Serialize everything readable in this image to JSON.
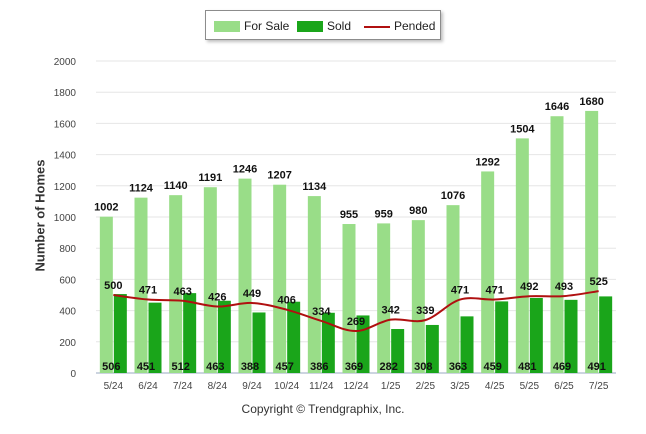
{
  "chart_data": {
    "type": "bar",
    "title": "",
    "xlabel": "",
    "ylabel": "Number of Homes",
    "ylim": [
      0,
      2000
    ],
    "yticks": [
      0,
      200,
      400,
      600,
      800,
      1000,
      1200,
      1400,
      1600,
      1800,
      2000
    ],
    "grid": true,
    "legend_position": "top-center",
    "categories": [
      "5/24",
      "6/24",
      "7/24",
      "8/24",
      "9/24",
      "10/24",
      "11/24",
      "12/24",
      "1/25",
      "2/25",
      "3/25",
      "4/25",
      "5/25",
      "6/25",
      "7/25"
    ],
    "series": [
      {
        "name": "For Sale",
        "type": "bar",
        "color": "#99dd88",
        "values": [
          1002,
          1124,
          1140,
          1191,
          1246,
          1207,
          1134,
          955,
          959,
          980,
          1076,
          1292,
          1504,
          1646,
          1680
        ]
      },
      {
        "name": "Sold",
        "type": "bar",
        "color": "#1aa51a",
        "values": [
          506,
          451,
          512,
          463,
          388,
          457,
          386,
          369,
          282,
          308,
          363,
          459,
          481,
          469,
          491
        ]
      },
      {
        "name": "Pended",
        "type": "line",
        "color": "#b01010",
        "values": [
          500,
          471,
          463,
          426,
          449,
          406,
          334,
          269,
          342,
          339,
          471,
          471,
          492,
          493,
          525
        ]
      }
    ]
  },
  "footer": {
    "copyright": "Copyright © Trendgraphix, Inc."
  }
}
